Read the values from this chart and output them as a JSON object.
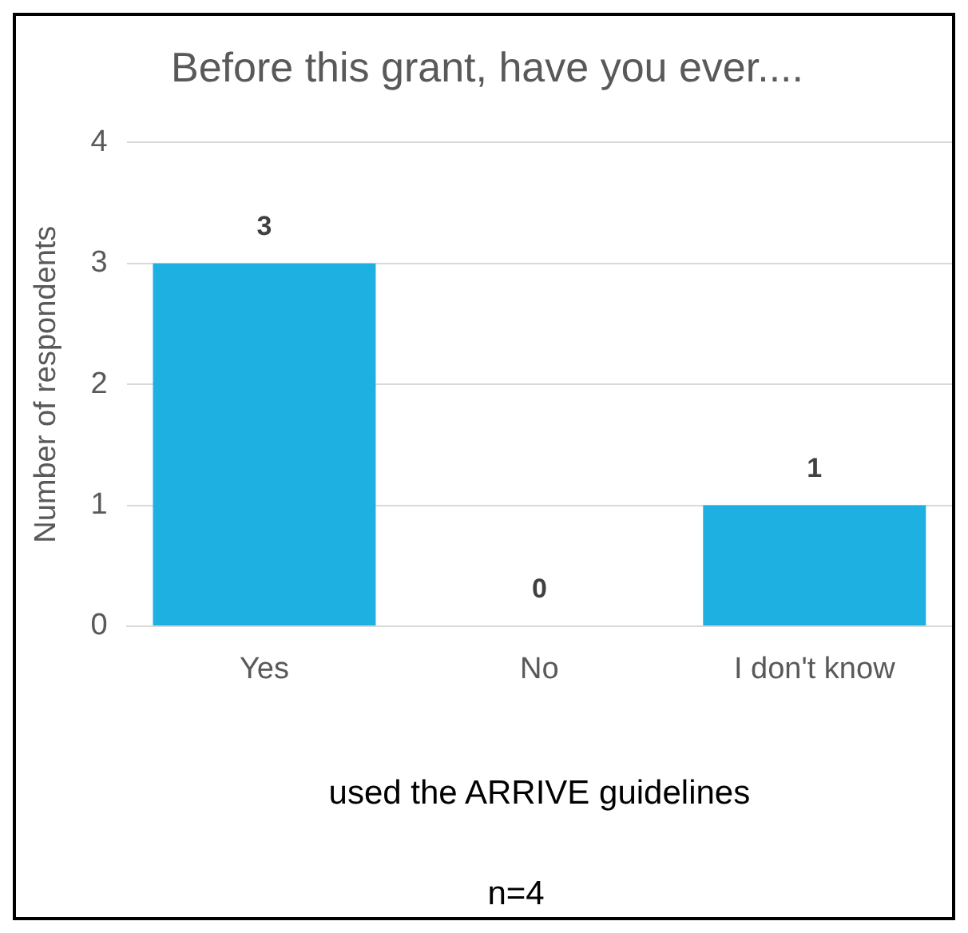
{
  "chart_data": {
    "type": "bar",
    "title": "Before this grant, have you ever....",
    "categories": [
      "Yes",
      "No",
      "I don't know"
    ],
    "values": [
      3,
      0,
      1
    ],
    "color": "#1fb0e2",
    "xlabel": "used the ARRIVE guidelines",
    "ylabel": "Number of respondents",
    "ylim": [
      0,
      4
    ],
    "yticks": [
      0,
      1,
      2,
      3,
      4
    ],
    "grid": "y",
    "data_labels": true,
    "annotations": [
      "n=4"
    ]
  }
}
